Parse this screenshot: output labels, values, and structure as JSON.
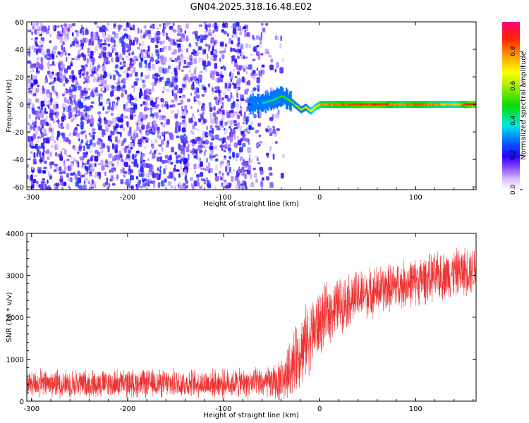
{
  "title": "GN04.2025.318.16.48.E02",
  "chart_data": [
    {
      "type": "heatmap",
      "name": "spectrogram",
      "xlabel": "Height of straight line (km)",
      "ylabel": "Frequency (Hz)",
      "xlim": [
        -305,
        163
      ],
      "ylim": [
        -62,
        60
      ],
      "xticks": [
        -300,
        -200,
        -100,
        0,
        100
      ],
      "yticks": [
        -60,
        -40,
        -20,
        0,
        20,
        40,
        60
      ],
      "noise_region": {
        "x_range": [
          -305,
          -35
        ],
        "density_fading_from": -75,
        "frequency_range": [
          -60,
          60
        ],
        "amplitude_range": [
          0.05,
          0.25
        ]
      },
      "signal_trace": {
        "x": [
          -75,
          -60,
          -50,
          -40,
          -30,
          -20,
          -15,
          -10,
          -5,
          0,
          20,
          60,
          85,
          100,
          120,
          140,
          155,
          163
        ],
        "frequency": [
          0,
          1,
          3,
          6,
          2,
          -4,
          -2,
          -5,
          -2,
          0,
          0,
          0,
          0,
          0,
          0,
          0,
          0,
          0
        ],
        "amplitude": [
          0.25,
          0.35,
          0.45,
          0.5,
          0.55,
          0.6,
          0.65,
          0.7,
          0.75,
          0.8,
          0.85,
          0.9,
          0.8,
          0.85,
          0.8,
          0.75,
          0.9,
          0.9
        ]
      },
      "colorbar": {
        "label": "Normalized spectral amplitude",
        "ticks": [
          "0.0",
          "0.2",
          "0.4",
          "0.6",
          "0.8"
        ],
        "range": [
          0,
          0.97
        ]
      }
    },
    {
      "type": "line",
      "name": "snr",
      "xlabel": "Height of straight line (km)",
      "ylabel": "SNR (10 * v/v)",
      "xlim": [
        -305,
        163
      ],
      "ylim": [
        0,
        4000
      ],
      "xticks": [
        -300,
        -200,
        -100,
        0,
        100
      ],
      "yticks": [
        0,
        1000,
        2000,
        3000,
        4000
      ],
      "color": "#ee3333",
      "envelope_x": [
        -305,
        -200,
        -100,
        -55,
        -45,
        -35,
        -25,
        -15,
        -5,
        5,
        20,
        40,
        60,
        80,
        100,
        120,
        140,
        163
      ],
      "envelope_mean": [
        420,
        420,
        420,
        430,
        450,
        600,
        1000,
        1400,
        1700,
        2000,
        2300,
        2500,
        2650,
        2750,
        2850,
        2950,
        3050,
        3150
      ],
      "envelope_spread": [
        380,
        380,
        380,
        420,
        500,
        700,
        900,
        1000,
        950,
        850,
        750,
        700,
        650,
        650,
        650,
        650,
        650,
        650
      ]
    }
  ]
}
